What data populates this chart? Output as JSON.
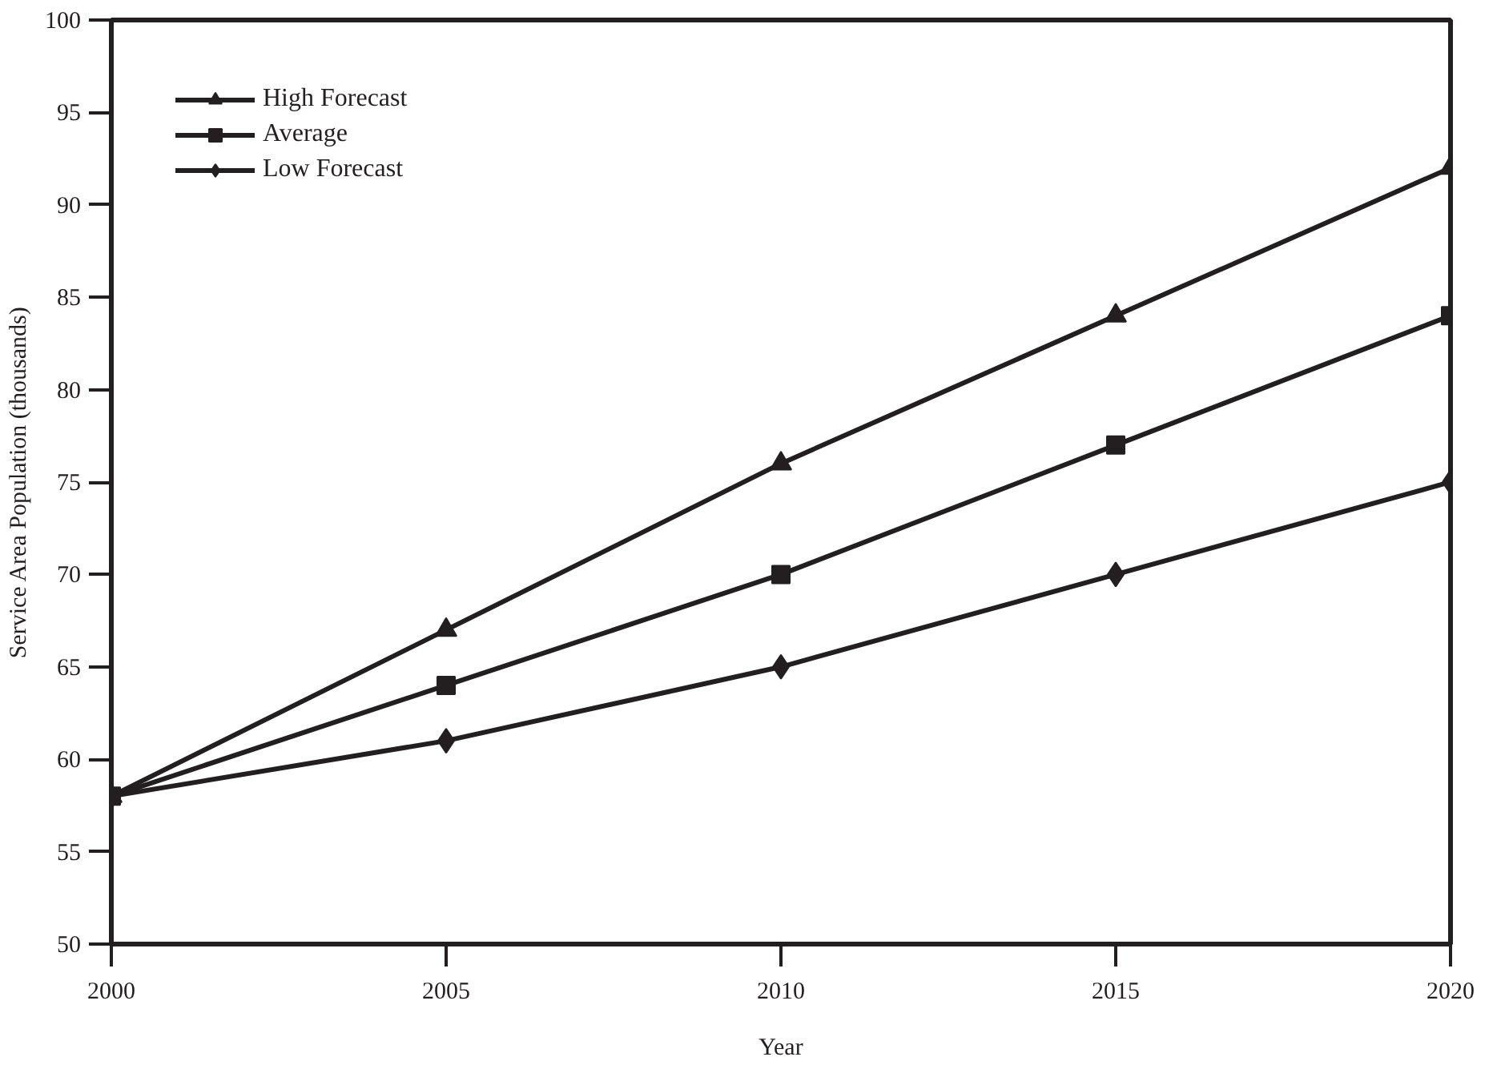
{
  "chart_data": {
    "type": "line",
    "xlabel": "Year",
    "ylabel": "Service Area Population (thousands)",
    "x": [
      2000,
      2005,
      2010,
      2015,
      2020
    ],
    "series": [
      {
        "name": "High Forecast",
        "color": "#231f20",
        "marker": "triangle",
        "values": [
          58,
          67,
          76,
          84,
          92
        ]
      },
      {
        "name": "Average",
        "color": "#231f20",
        "marker": "square",
        "values": [
          58,
          64,
          70,
          77,
          84
        ]
      },
      {
        "name": "Low Forecast",
        "color": "#231f20",
        "marker": "diamond",
        "values": [
          58,
          61,
          65,
          70,
          75
        ]
      }
    ],
    "xlim": [
      2000,
      2020
    ],
    "xticks": [
      2000,
      2005,
      2010,
      2015,
      2020
    ],
    "ylim": [
      50,
      100
    ],
    "yticks": [
      50,
      55,
      60,
      65,
      70,
      75,
      80,
      85,
      90,
      95,
      100
    ],
    "grid": false,
    "legend": "top left",
    "line_style": "solid"
  }
}
